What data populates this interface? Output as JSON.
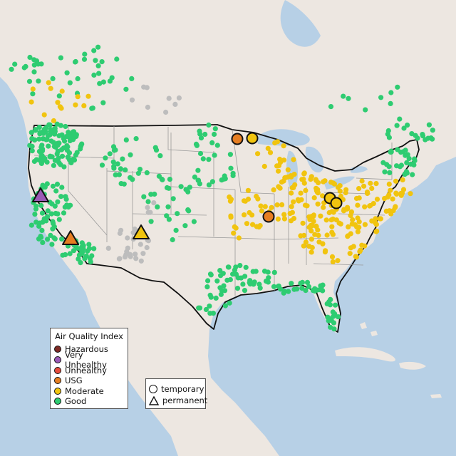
{
  "legend": {
    "title": "Air Quality Index",
    "categories": [
      {
        "label": "Hazardous",
        "color": "#7e2a24"
      },
      {
        "label": "Very Unhealthy",
        "color": "#9b59b6"
      },
      {
        "label": "Unhealthy",
        "color": "#e74c3c"
      },
      {
        "label": "USG",
        "color": "#e67e22"
      },
      {
        "label": "Moderate",
        "color": "#f1c40f"
      },
      {
        "label": "Good",
        "color": "#2ecc71"
      }
    ]
  },
  "shape_legend": {
    "items": [
      {
        "label": "temporary",
        "shape": "circle"
      },
      {
        "label": "permanent",
        "shape": "triangle"
      }
    ]
  },
  "colors": {
    "land": "#ede7e1",
    "water": "#b7d0e6",
    "border": "#111111",
    "state_lines": "#9a9a9a",
    "no_data": "#bdbdbd"
  }
}
